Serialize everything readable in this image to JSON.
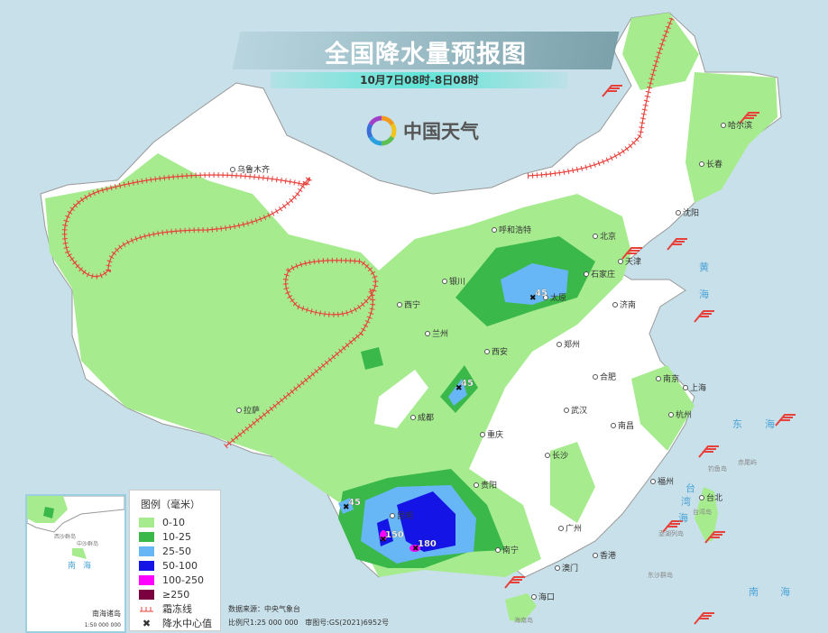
{
  "title": "全国降水量预报图",
  "subtitle": "10月7日08时-8日08时",
  "logo": {
    "text": "中国天气",
    "icon": "china-weather-pinwheel-icon"
  },
  "colors": {
    "sea": "#c8e0e9",
    "land": "#ffffff",
    "0-10": "#a6ec8f",
    "10-25": "#3bb84a",
    "25-50": "#67b6f5",
    "50-100": "#1414e6",
    "100-250": "#ff00ff",
    "≥250": "#7a0040",
    "frost_line": "#e8403a"
  },
  "legend": {
    "title": "图例（毫米）",
    "items": [
      {
        "label": "0-10",
        "color": "#a6ec8f"
      },
      {
        "label": "10-25",
        "color": "#3bb84a"
      },
      {
        "label": "25-50",
        "color": "#67b6f5"
      },
      {
        "label": "50-100",
        "color": "#1414e6"
      },
      {
        "label": "100-250",
        "color": "#ff00ff"
      },
      {
        "label": "≥250",
        "color": "#7a0040"
      }
    ],
    "frost_line": "霜冻线",
    "rain_center": "降水中心值"
  },
  "credits": {
    "source": "数据来源：中央气象台",
    "scale": "比例尺1:25 000 000",
    "review": "审图号:GS(2021)6952号"
  },
  "cities": [
    "乌鲁木齐",
    "哈尔滨",
    "长春",
    "沈阳",
    "呼和浩特",
    "北京",
    "天津",
    "石家庄",
    "太原",
    "银川",
    "西宁",
    "兰州",
    "济南",
    "西安",
    "郑州",
    "合肥",
    "南京",
    "上海",
    "武汉",
    "杭州",
    "成都",
    "拉萨",
    "重庆",
    "长沙",
    "南昌",
    "贵阳",
    "福州",
    "台北",
    "昆明",
    "南宁",
    "广州",
    "香港",
    "澳门",
    "海口"
  ],
  "seas": [
    "黄",
    "海",
    "东",
    "海",
    "南",
    "海",
    "台",
    "湾",
    "海"
  ],
  "islands": [
    "钓鱼岛",
    "赤尾屿",
    "台湾岛",
    "澎湖列岛",
    "东沙群岛",
    "海南岛"
  ],
  "rain_centers": [
    45,
    45,
    45,
    150,
    180
  ],
  "inset": {
    "name": "南海诸岛",
    "scale": "1:50 000 000",
    "sea": "南海",
    "islands": [
      "西沙群岛",
      "中沙群岛"
    ]
  }
}
